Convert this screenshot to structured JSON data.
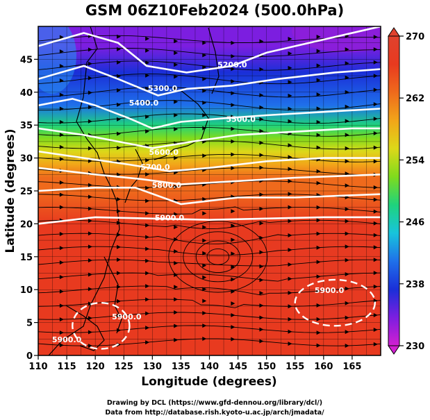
{
  "chart_data": {
    "type": "heatmap",
    "title": "GSM 06Z10Feb2024 (500.0hPa)",
    "xlabel": "Longitude (degrees)",
    "ylabel": "Latitude  (degrees)",
    "xlim": [
      110,
      170
    ],
    "ylim": [
      0,
      50
    ],
    "xticks": [
      "110",
      "115",
      "120",
      "125",
      "130",
      "135",
      "140",
      "145",
      "150",
      "155",
      "160",
      "165"
    ],
    "yticks": [
      "0",
      "5",
      "10",
      "15",
      "20",
      "25",
      "30",
      "35",
      "40",
      "45"
    ],
    "colorbar": {
      "min": 230,
      "max": 270,
      "ticks": [
        "230",
        "238",
        "246",
        "254",
        "262",
        "270"
      ],
      "colors": [
        "#d21fd2",
        "#7c1ee0",
        "#1a2fd8",
        "#1f70ea",
        "#18c4dc",
        "#1ed37d",
        "#7fdb1d",
        "#dcd819",
        "#f2a519",
        "#ef6a1c",
        "#e83a1f",
        "#e0422e"
      ]
    },
    "temperature_bands": [
      {
        "lat": 50,
        "value": 232
      },
      {
        "lat": 47,
        "value": 235
      },
      {
        "lat": 43,
        "value": 238
      },
      {
        "lat": 38,
        "value": 242
      },
      {
        "lat": 35,
        "value": 247
      },
      {
        "lat": 33,
        "value": 251
      },
      {
        "lat": 31,
        "value": 254
      },
      {
        "lat": 29,
        "value": 258
      },
      {
        "lat": 27,
        "value": 262
      },
      {
        "lat": 25,
        "value": 264
      },
      {
        "lat": 20,
        "value": 266
      },
      {
        "lat": 10,
        "value": 265
      },
      {
        "lat": 0,
        "value": 266
      }
    ],
    "contours": [
      {
        "level": 5200,
        "label": "5200.0",
        "points": [
          [
            110,
            47
          ],
          [
            118,
            49
          ],
          [
            124,
            47.5
          ],
          [
            129,
            44
          ],
          [
            136,
            43
          ],
          [
            144,
            44
          ],
          [
            150,
            46
          ],
          [
            160,
            48
          ],
          [
            170,
            50
          ]
        ]
      },
      {
        "level": 5300,
        "label": "5300.0",
        "points": [
          [
            110,
            42
          ],
          [
            118,
            44
          ],
          [
            124,
            42
          ],
          [
            131,
            39.5
          ],
          [
            136,
            40.5
          ],
          [
            144,
            41
          ],
          [
            152,
            42
          ],
          [
            162,
            43
          ],
          [
            170,
            43.5
          ]
        ]
      },
      {
        "level": 5400,
        "label": "5400.0",
        "points": [
          [
            110,
            38
          ],
          [
            116,
            39
          ],
          [
            120,
            38
          ],
          [
            126,
            36
          ],
          [
            130,
            34.5
          ],
          [
            135,
            35.5
          ],
          [
            142,
            36
          ],
          [
            150,
            36.5
          ],
          [
            160,
            37
          ],
          [
            170,
            37.5
          ]
        ]
      },
      {
        "level": 5500,
        "label": "5500.0",
        "points": [
          [
            110,
            34.5
          ],
          [
            118,
            33.5
          ],
          [
            124,
            32.5
          ],
          [
            130,
            31.5
          ],
          [
            137,
            32.5
          ],
          [
            145,
            33.5
          ],
          [
            155,
            34
          ],
          [
            165,
            34.5
          ],
          [
            170,
            34.5
          ]
        ]
      },
      {
        "level": 5600,
        "label": "5600.0",
        "points": [
          [
            110,
            31
          ],
          [
            118,
            30
          ],
          [
            126,
            29
          ],
          [
            133,
            28
          ],
          [
            140,
            28.5
          ],
          [
            150,
            29.5
          ],
          [
            160,
            30
          ],
          [
            170,
            30
          ]
        ]
      },
      {
        "level": 5700,
        "label": "5700.0",
        "points": [
          [
            110,
            28.5
          ],
          [
            120,
            27.5
          ],
          [
            128,
            26.8
          ],
          [
            135,
            26
          ],
          [
            145,
            26.5
          ],
          [
            155,
            27
          ],
          [
            170,
            27.5
          ]
        ]
      },
      {
        "level": 5800,
        "label": "5800.0",
        "points": [
          [
            110,
            25
          ],
          [
            120,
            25.5
          ],
          [
            127,
            25.5
          ],
          [
            135,
            23
          ],
          [
            145,
            24
          ],
          [
            155,
            24
          ],
          [
            170,
            24.5
          ]
        ]
      },
      {
        "level": 5900,
        "label": "5900.0",
        "points": [
          [
            110,
            20
          ],
          [
            120,
            21
          ],
          [
            130,
            20.8
          ],
          [
            140,
            20.6
          ],
          [
            150,
            20.8
          ],
          [
            160,
            21
          ],
          [
            170,
            21
          ]
        ]
      }
    ],
    "contour_labels": [
      {
        "text": "5200.0",
        "lon": 144,
        "lat": 43.8
      },
      {
        "text": "5300.0",
        "lon": 131.8,
        "lat": 40.2
      },
      {
        "text": "5400.0",
        "lon": 128.5,
        "lat": 38
      },
      {
        "text": "5500.0",
        "lon": 145.5,
        "lat": 35.5
      },
      {
        "text": "5600.0",
        "lon": 132,
        "lat": 30.5
      },
      {
        "text": "5700.0",
        "lon": 130.5,
        "lat": 28.2
      },
      {
        "text": "5800.0",
        "lon": 132.5,
        "lat": 25.5
      },
      {
        "text": "5900.0",
        "lon": 133,
        "lat": 20.5
      },
      {
        "text": "5900.0",
        "lon": 161,
        "lat": 9.5
      },
      {
        "text": "5900.0",
        "lon": 125.5,
        "lat": 5.5
      },
      {
        "text": "5900.0",
        "lon": 115,
        "lat": 2
      }
    ],
    "flow_center": {
      "lon": 141.5,
      "lat": 15
    }
  },
  "credits": {
    "line1": "Drawing by DCL (https://www.gfd-dennou.org/library/dcl/)",
    "line2": "Data from http://database.rish.kyoto-u.ac.jp/arch/jmadata/"
  }
}
